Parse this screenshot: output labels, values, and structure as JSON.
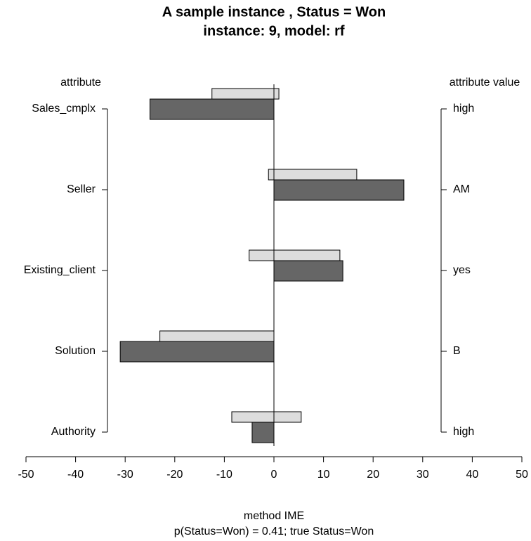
{
  "chart_data": {
    "type": "bar",
    "orientation": "horizontal",
    "title": "A sample instance , Status = Won",
    "subtitle": "instance: 9, model: rf",
    "left_axis_title": "attribute",
    "right_axis_title": "attribute value",
    "categories": [
      "Sales_cmplx",
      "Seller",
      "Existing_client",
      "Solution",
      "Authority"
    ],
    "attribute_values": [
      "high",
      "AM",
      "yes",
      "B",
      "high"
    ],
    "values": [
      -25,
      26.2,
      13.9,
      -31,
      -4.4
    ],
    "color": "#666666",
    "range_low": [
      -12.5,
      -1.1,
      -5,
      -23,
      -8.5
    ],
    "range_high": [
      1,
      16.7,
      13.3,
      0,
      5.5
    ],
    "range_color": "#dddddd",
    "xlim": [
      -50,
      50
    ],
    "xticks": [
      -50,
      -40,
      -30,
      -20,
      -10,
      0,
      10,
      20,
      30,
      40,
      50
    ],
    "xlabel": "method IME",
    "note": "p(Status=Won) = 0.41;  true Status=Won"
  }
}
